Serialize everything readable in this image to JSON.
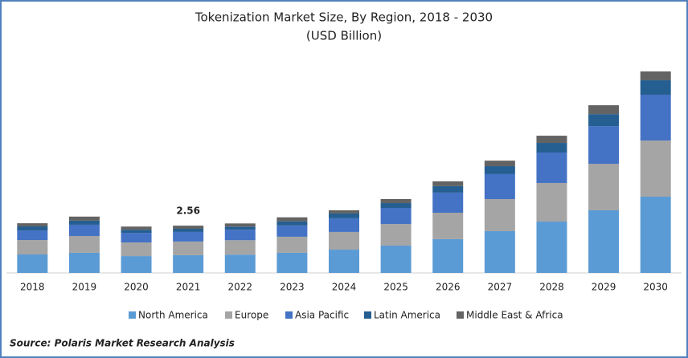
{
  "chart_data": {
    "type": "stacked_bar",
    "title": "Tokenization Market Size, By Region, 2018 - 2030",
    "subtitle": "(USD Billion)",
    "categories": [
      "2018",
      "2019",
      "2020",
      "2021",
      "2022",
      "2023",
      "2024",
      "2025",
      "2026",
      "2027",
      "2028",
      "2029",
      "2030"
    ],
    "series": [
      {
        "name": "North America",
        "color": "#5b9bd5",
        "values": [
          1.0,
          1.09,
          0.91,
          0.96,
          0.99,
          1.09,
          1.26,
          1.48,
          1.83,
          2.26,
          2.78,
          3.39,
          4.13
        ]
      },
      {
        "name": "Europe",
        "color": "#a5a5a5",
        "values": [
          0.78,
          0.91,
          0.74,
          0.74,
          0.78,
          0.87,
          0.96,
          1.17,
          1.43,
          1.74,
          2.09,
          2.52,
          3.04
        ]
      },
      {
        "name": "Asia Pacific",
        "color": "#4472c4",
        "values": [
          0.52,
          0.61,
          0.52,
          0.52,
          0.57,
          0.61,
          0.74,
          0.87,
          1.09,
          1.35,
          1.65,
          2.04,
          2.48
        ]
      },
      {
        "name": "Latin America",
        "color": "#255e91",
        "values": [
          0.22,
          0.22,
          0.17,
          0.17,
          0.17,
          0.22,
          0.26,
          0.26,
          0.35,
          0.43,
          0.52,
          0.65,
          0.78
        ]
      },
      {
        "name": "Middle East & Africa",
        "color": "#636363",
        "values": [
          0.17,
          0.22,
          0.17,
          0.17,
          0.17,
          0.22,
          0.17,
          0.22,
          0.26,
          0.3,
          0.39,
          0.48,
          0.48
        ]
      }
    ],
    "annotations": [
      {
        "category": "2021",
        "value": 2.56
      }
    ],
    "source": "Source: Polaris  Market Research Analysis"
  }
}
